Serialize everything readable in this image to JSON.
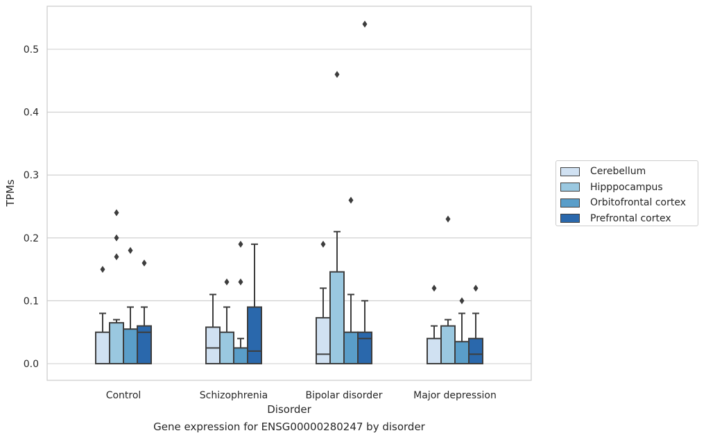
{
  "caption": "Gene expression for ENSG00000280247 by disorder",
  "chart_data": {
    "type": "box",
    "xlabel": "Disorder",
    "ylabel": "TPMs",
    "ylim": [
      -0.026,
      0.57
    ],
    "yticks": [
      0.0,
      0.1,
      0.2,
      0.3,
      0.4,
      0.5
    ],
    "ytick_labels": [
      "0.0",
      "0.1",
      "0.2",
      "0.3",
      "0.4",
      "0.5"
    ],
    "grid": "horizontal",
    "legend_position": "right-center",
    "categories": [
      "Control",
      "Schizophrenia",
      "Bipolar disorder",
      "Major depression"
    ],
    "series": [
      {
        "name": "Cerebellum",
        "color": "#d0e1f2",
        "boxes": [
          {
            "whislo": 0.0,
            "q1": 0.0,
            "med": 0.0,
            "q3": 0.05,
            "whishi": 0.08,
            "fliers": [
              0.15
            ]
          },
          {
            "whislo": 0.0,
            "q1": 0.0,
            "med": 0.025,
            "q3": 0.058,
            "whishi": 0.11,
            "fliers": []
          },
          {
            "whislo": 0.0,
            "q1": 0.0,
            "med": 0.015,
            "q3": 0.073,
            "whishi": 0.12,
            "fliers": [
              0.19
            ]
          },
          {
            "whislo": 0.0,
            "q1": 0.0,
            "med": 0.0,
            "q3": 0.04,
            "whishi": 0.06,
            "fliers": [
              0.12
            ]
          }
        ]
      },
      {
        "name": "Hipppocampus",
        "color": "#9ac8e0",
        "boxes": [
          {
            "whislo": 0.0,
            "q1": 0.0,
            "med": 0.0,
            "q3": 0.065,
            "whishi": 0.07,
            "fliers": [
              0.24,
              0.2,
              0.17
            ]
          },
          {
            "whislo": 0.0,
            "q1": 0.0,
            "med": 0.0,
            "q3": 0.05,
            "whishi": 0.09,
            "fliers": [
              0.13
            ]
          },
          {
            "whislo": 0.0,
            "q1": 0.0,
            "med": 0.0,
            "q3": 0.146,
            "whishi": 0.21,
            "fliers": [
              0.46
            ]
          },
          {
            "whislo": 0.0,
            "q1": 0.0,
            "med": 0.0,
            "q3": 0.06,
            "whishi": 0.07,
            "fliers": [
              0.23
            ]
          }
        ]
      },
      {
        "name": "Orbitofrontal cortex",
        "color": "#5a9ec9",
        "boxes": [
          {
            "whislo": 0.0,
            "q1": 0.0,
            "med": 0.0,
            "q3": 0.055,
            "whishi": 0.09,
            "fliers": [
              0.18
            ]
          },
          {
            "whislo": 0.0,
            "q1": 0.0,
            "med": 0.0,
            "q3": 0.025,
            "whishi": 0.04,
            "fliers": [
              0.19,
              0.13
            ]
          },
          {
            "whislo": 0.0,
            "q1": 0.0,
            "med": 0.0,
            "q3": 0.05,
            "whishi": 0.11,
            "fliers": [
              0.26
            ]
          },
          {
            "whislo": 0.0,
            "q1": 0.0,
            "med": 0.0,
            "q3": 0.035,
            "whishi": 0.08,
            "fliers": [
              0.1
            ]
          }
        ]
      },
      {
        "name": "Prefrontal cortex",
        "color": "#2a68ac",
        "boxes": [
          {
            "whislo": 0.0,
            "q1": 0.0,
            "med": 0.05,
            "q3": 0.06,
            "whishi": 0.09,
            "fliers": [
              0.16
            ]
          },
          {
            "whislo": 0.0,
            "q1": 0.0,
            "med": 0.02,
            "q3": 0.09,
            "whishi": 0.19,
            "fliers": []
          },
          {
            "whislo": 0.0,
            "q1": 0.0,
            "med": 0.04,
            "q3": 0.05,
            "whishi": 0.1,
            "fliers": [
              0.54
            ]
          },
          {
            "whislo": 0.0,
            "q1": 0.0,
            "med": 0.015,
            "q3": 0.04,
            "whishi": 0.08,
            "fliers": [
              0.12
            ]
          }
        ]
      }
    ]
  }
}
